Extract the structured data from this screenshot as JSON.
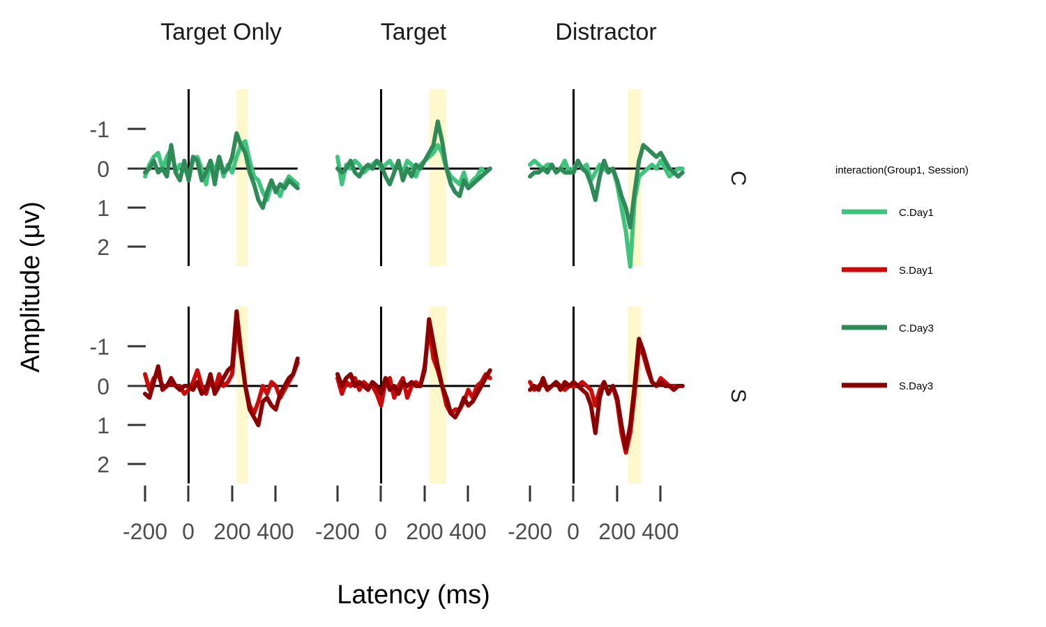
{
  "chart_data": {
    "type": "line",
    "xlabel": "Latency (ms)",
    "ylabel": "Amplitude (μv)",
    "x_ticks": [
      -200,
      0,
      200,
      400
    ],
    "x_tick_labels": [
      "-200",
      "0",
      "200",
      "400"
    ],
    "y_ticks": [
      -1,
      0,
      1,
      2
    ],
    "y_tick_labels": [
      "-1",
      "0",
      "1",
      "2"
    ],
    "xlim": [
      -200,
      500
    ],
    "ylim": [
      -2,
      2.5
    ],
    "y_reversed": true,
    "grid": false,
    "legend": {
      "title": "interaction(Group1, Session)",
      "position": "right",
      "entries": [
        {
          "label": "C.Day1",
          "color": "#3fc47d"
        },
        {
          "label": "S.Day1",
          "color": "#cc0a0a"
        },
        {
          "label": "C.Day3",
          "color": "#2e8b57"
        },
        {
          "label": "S.Day3",
          "color": "#8b0000"
        }
      ]
    },
    "columns": [
      "Target Only",
      "Target",
      "Distractor"
    ],
    "rows": [
      "C",
      "S"
    ],
    "highlight_windows": [
      [
        220,
        270
      ],
      [
        220,
        300
      ],
      [
        250,
        310
      ]
    ],
    "x": [
      -200,
      -180,
      -160,
      -140,
      -120,
      -100,
      -80,
      -60,
      -40,
      -20,
      0,
      20,
      40,
      60,
      80,
      100,
      120,
      140,
      160,
      180,
      200,
      220,
      240,
      260,
      280,
      300,
      320,
      340,
      360,
      380,
      400,
      420,
      440,
      460,
      480,
      500
    ],
    "panels": [
      {
        "row": "C",
        "column": "Target Only",
        "series": [
          {
            "name": "C.Day1",
            "values": [
              0.2,
              -0.1,
              -0.3,
              -0.4,
              0.0,
              -0.3,
              -0.5,
              0.1,
              -0.1,
              0.0,
              0.2,
              -0.2,
              -0.3,
              0.0,
              0.4,
              -0.2,
              0.1,
              -0.3,
              0.2,
              -0.1,
              0.1,
              -0.3,
              -0.6,
              -0.7,
              -0.2,
              0.2,
              0.3,
              0.6,
              0.8,
              0.4,
              0.5,
              0.7,
              0.4,
              0.2,
              0.3,
              0.4
            ]
          },
          {
            "name": "C.Day3",
            "values": [
              0.1,
              0.0,
              -0.2,
              0.1,
              0.0,
              0.2,
              -0.6,
              0.1,
              0.3,
              -0.2,
              0.3,
              -0.3,
              -0.2,
              0.3,
              0.1,
              -0.2,
              0.4,
              -0.3,
              0.1,
              0.0,
              -0.3,
              -0.9,
              -0.6,
              -0.4,
              0.1,
              0.4,
              0.8,
              1.0,
              0.6,
              0.3,
              0.6,
              0.4,
              0.5,
              0.3,
              0.4,
              0.5
            ]
          }
        ]
      },
      {
        "row": "C",
        "column": "Target",
        "series": [
          {
            "name": "C.Day1",
            "values": [
              -0.3,
              0.4,
              -0.1,
              0.0,
              -0.2,
              -0.1,
              0.1,
              0.0,
              -0.1,
              -0.2,
              0.0,
              -0.1,
              -0.2,
              0.0,
              -0.1,
              0.1,
              -0.2,
              -0.1,
              0.2,
              -0.1,
              -0.2,
              -0.3,
              -0.4,
              -0.6,
              -0.4,
              0.0,
              0.2,
              0.3,
              0.4,
              0.1,
              0.5,
              0.3,
              0.2,
              0.0,
              0.1,
              0.0
            ]
          },
          {
            "name": "C.Day3",
            "values": [
              0.0,
              0.1,
              0.0,
              -0.2,
              0.1,
              0.2,
              0.0,
              -0.1,
              0.0,
              -0.2,
              -0.1,
              0.2,
              0.4,
              0.1,
              -0.2,
              0.3,
              0.0,
              0.2,
              -0.1,
              0.0,
              -0.2,
              -0.4,
              -0.6,
              -1.2,
              -0.7,
              0.0,
              0.4,
              0.6,
              0.7,
              0.3,
              0.5,
              0.4,
              0.3,
              0.2,
              0.1,
              0.0
            ]
          }
        ]
      },
      {
        "row": "C",
        "column": "Distractor",
        "series": [
          {
            "name": "C.Day1",
            "values": [
              -0.1,
              -0.2,
              -0.1,
              0.0,
              -0.1,
              -0.1,
              0.1,
              0.0,
              -0.2,
              0.1,
              0.0,
              -0.2,
              0.0,
              -0.1,
              0.3,
              0.1,
              -0.1,
              0.0,
              0.1,
              0.0,
              0.4,
              1.0,
              1.6,
              2.5,
              0.8,
              0.2,
              0.1,
              0.0,
              -0.1,
              0.0,
              -0.2,
              0.0,
              0.2,
              0.1,
              0.0,
              0.0
            ]
          },
          {
            "name": "C.Day3",
            "values": [
              0.2,
              0.1,
              0.1,
              0.0,
              0.1,
              -0.1,
              0.1,
              0.0,
              0.1,
              0.1,
              0.1,
              -0.2,
              0.0,
              0.1,
              0.4,
              0.8,
              0.2,
              -0.2,
              0.1,
              0.0,
              0.3,
              0.7,
              1.0,
              1.5,
              0.6,
              -0.2,
              -0.6,
              -0.5,
              -0.4,
              -0.3,
              -0.4,
              -0.2,
              0.0,
              0.1,
              0.2,
              0.1
            ]
          }
        ]
      },
      {
        "row": "S",
        "column": "Target Only",
        "series": [
          {
            "name": "S.Day1",
            "values": [
              -0.3,
              0.1,
              -0.2,
              -0.3,
              0.0,
              0.0,
              -0.1,
              0.0,
              0.0,
              0.2,
              0.1,
              -0.1,
              -0.4,
              0.0,
              0.2,
              -0.2,
              0.1,
              -0.3,
              0.0,
              -0.1,
              -0.3,
              -1.6,
              -0.8,
              0.0,
              0.5,
              0.7,
              0.4,
              0.0,
              0.2,
              -0.1,
              0.0,
              0.3,
              0.1,
              -0.1,
              -0.3,
              -0.6
            ]
          },
          {
            "name": "S.Day3",
            "values": [
              0.2,
              0.3,
              -0.1,
              -0.5,
              0.1,
              0.0,
              -0.2,
              0.0,
              0.1,
              0.0,
              0.0,
              0.1,
              -0.1,
              0.2,
              0.1,
              -0.3,
              0.2,
              0.0,
              -0.2,
              -0.4,
              -0.5,
              -1.9,
              -0.9,
              0.0,
              0.6,
              0.8,
              1.0,
              0.4,
              0.3,
              0.5,
              0.6,
              0.2,
              0.0,
              -0.2,
              -0.3,
              -0.7
            ]
          }
        ]
      },
      {
        "row": "S",
        "column": "Target",
        "series": [
          {
            "name": "S.Day1",
            "values": [
              -0.2,
              0.2,
              -0.1,
              0.0,
              -0.2,
              0.1,
              -0.1,
              0.0,
              0.0,
              0.2,
              0.5,
              -0.1,
              -0.2,
              0.3,
              0.0,
              -0.2,
              0.3,
              0.0,
              -0.1,
              0.0,
              -0.5,
              -1.5,
              -0.7,
              -0.4,
              0.0,
              0.5,
              0.7,
              0.6,
              0.6,
              0.4,
              0.1,
              0.3,
              0.0,
              -0.1,
              -0.3,
              -0.2
            ]
          },
          {
            "name": "S.Day3",
            "values": [
              -0.3,
              0.0,
              -0.2,
              -0.3,
              0.0,
              -0.1,
              0.0,
              0.1,
              -0.1,
              0.0,
              0.2,
              -0.2,
              0.1,
              0.0,
              0.2,
              -0.1,
              0.0,
              -0.1,
              0.0,
              0.0,
              -0.4,
              -1.7,
              -1.1,
              -0.5,
              0.0,
              0.3,
              0.7,
              0.8,
              0.6,
              0.3,
              0.5,
              0.4,
              0.2,
              0.0,
              -0.2,
              -0.4
            ]
          }
        ]
      },
      {
        "row": "S",
        "column": "Distractor",
        "series": [
          {
            "name": "S.Day1",
            "values": [
              -0.1,
              0.1,
              0.0,
              -0.1,
              0.1,
              0.0,
              -0.1,
              0.0,
              0.1,
              0.0,
              0.0,
              0.0,
              -0.1,
              0.0,
              0.1,
              0.5,
              0.1,
              -0.1,
              0.2,
              0.0,
              0.4,
              1.2,
              1.7,
              1.2,
              0.2,
              -1.0,
              -0.8,
              -0.4,
              -0.1,
              0.0,
              -0.2,
              -0.1,
              0.0,
              0.0,
              0.0,
              0.0
            ]
          },
          {
            "name": "S.Day3",
            "values": [
              0.1,
              0.0,
              0.1,
              -0.2,
              0.1,
              0.0,
              -0.1,
              0.1,
              -0.1,
              0.0,
              -0.1,
              0.0,
              0.1,
              0.2,
              0.5,
              1.2,
              0.3,
              -0.1,
              0.2,
              0.0,
              0.3,
              1.0,
              1.6,
              1.0,
              0.0,
              -1.2,
              -0.9,
              -0.5,
              -0.1,
              0.0,
              -0.1,
              0.0,
              0.0,
              0.1,
              0.0,
              0.0
            ]
          }
        ]
      }
    ]
  }
}
